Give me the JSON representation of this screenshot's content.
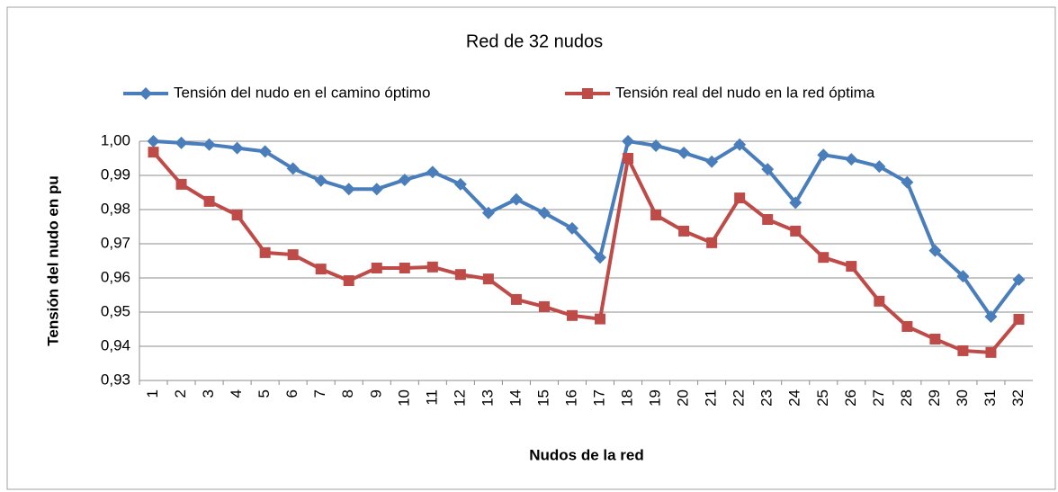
{
  "chart_data": {
    "type": "line",
    "title": "Red de 32 nudos",
    "xlabel": "Nudos de la red",
    "ylabel": "Tensión del nudo en pu",
    "categories": [
      "1",
      "2",
      "3",
      "4",
      "5",
      "6",
      "7",
      "8",
      "9",
      "10",
      "11",
      "12",
      "13",
      "14",
      "15",
      "16",
      "17",
      "18",
      "19",
      "20",
      "21",
      "22",
      "23",
      "24",
      "25",
      "26",
      "27",
      "28",
      "29",
      "30",
      "31",
      "32"
    ],
    "series": [
      {
        "name": "Tensión del nudo en el camino óptimo",
        "color": "#4a7ebb",
        "marker": "diamond",
        "values": [
          1.0,
          0.9995,
          0.999,
          0.998,
          0.997,
          0.992,
          0.9885,
          0.986,
          0.986,
          0.9887,
          0.991,
          0.9874,
          0.979,
          0.983,
          0.979,
          0.9745,
          0.966,
          1.0,
          0.9987,
          0.9966,
          0.994,
          0.999,
          0.9918,
          0.982,
          0.996,
          0.9947,
          0.9926,
          0.988,
          0.968,
          0.9605,
          0.9487,
          0.9595
        ]
      },
      {
        "name": "Tensión real del nudo en la red óptima",
        "color": "#be4b48",
        "marker": "square",
        "values": [
          0.9968,
          0.9874,
          0.9824,
          0.9784,
          0.9674,
          0.9668,
          0.9626,
          0.9592,
          0.9629,
          0.9629,
          0.9632,
          0.961,
          0.9597,
          0.9537,
          0.9516,
          0.949,
          0.948,
          0.995,
          0.9784,
          0.9737,
          0.9703,
          0.9834,
          0.9771,
          0.9737,
          0.966,
          0.9634,
          0.9532,
          0.9458,
          0.9421,
          0.9387,
          0.9382,
          0.9479
        ]
      }
    ],
    "ylim": [
      0.93,
      1.0
    ],
    "yticks": [
      {
        "value": 0.93,
        "label": "0,93"
      },
      {
        "value": 0.94,
        "label": "0,94"
      },
      {
        "value": 0.95,
        "label": "0,95"
      },
      {
        "value": 0.96,
        "label": "0,96"
      },
      {
        "value": 0.97,
        "label": "0,97"
      },
      {
        "value": 0.98,
        "label": "0,98"
      },
      {
        "value": 0.99,
        "label": "0,99"
      },
      {
        "value": 1.0,
        "label": "1,00"
      }
    ],
    "grid": true,
    "legend": "top"
  }
}
